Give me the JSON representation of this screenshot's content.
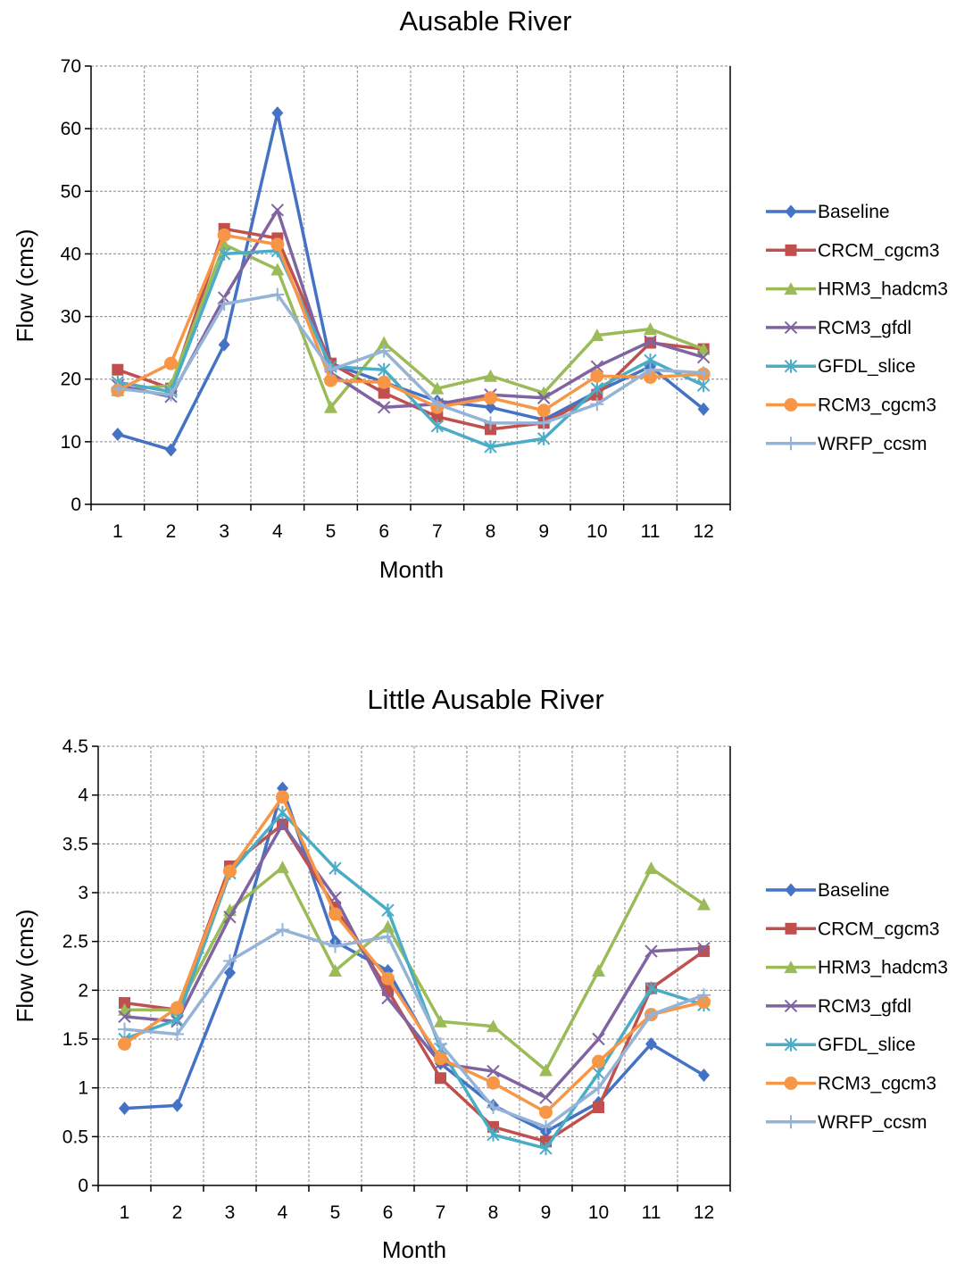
{
  "chart_data": [
    {
      "type": "line",
      "title": "Ausable River",
      "xlabel": "Month",
      "ylabel": "Flow (cms)",
      "ylim": [
        0,
        70
      ],
      "ytick_step": 10,
      "yticks": [
        "0",
        "10",
        "20",
        "30",
        "40",
        "50",
        "60",
        "70"
      ],
      "categories": [
        "1",
        "2",
        "3",
        "4",
        "5",
        "6",
        "7",
        "8",
        "9",
        "10",
        "11",
        "12"
      ],
      "grid": true,
      "legend_position": "right",
      "series": [
        {
          "name": "Baseline",
          "color": "#4472C4",
          "marker": "diamond",
          "values": [
            11.2,
            8.7,
            25.5,
            62.5,
            22.5,
            19.5,
            16.5,
            15.5,
            13.5,
            18.0,
            22.0,
            15.2
          ]
        },
        {
          "name": "CRCM_cgcm3",
          "color": "#C0504D",
          "marker": "square",
          "values": [
            21.5,
            18.5,
            44.0,
            42.5,
            22.5,
            17.8,
            14.0,
            12.0,
            13.0,
            17.5,
            25.8,
            24.8
          ]
        },
        {
          "name": "HRM3_hadcm3",
          "color": "#9BBB59",
          "marker": "triangle",
          "values": [
            18.2,
            19.0,
            41.5,
            37.5,
            15.5,
            25.8,
            18.5,
            20.5,
            17.8,
            27.0,
            28.0,
            24.8
          ]
        },
        {
          "name": "RCM3_gfdl",
          "color": "#8064A2",
          "marker": "x",
          "values": [
            19.0,
            17.2,
            33.0,
            47.0,
            21.0,
            15.5,
            16.0,
            17.5,
            17.0,
            22.0,
            26.0,
            23.5
          ]
        },
        {
          "name": "GFDL_slice",
          "color": "#4BACC6",
          "marker": "asterisk",
          "values": [
            19.5,
            18.0,
            40.0,
            40.5,
            22.0,
            21.5,
            12.5,
            9.2,
            10.5,
            18.5,
            23.0,
            19.0
          ]
        },
        {
          "name": "RCM3_cgcm3",
          "color": "#F79646",
          "marker": "circle",
          "values": [
            18.2,
            22.5,
            43.0,
            41.5,
            19.8,
            19.5,
            15.5,
            17.0,
            15.0,
            20.5,
            20.3,
            20.8
          ]
        },
        {
          "name": "WRFP_ccsm",
          "color": "#95B3D7",
          "marker": "plus",
          "values": [
            18.5,
            17.5,
            32.0,
            33.5,
            21.5,
            24.5,
            16.0,
            13.0,
            13.0,
            16.0,
            21.5,
            21.0
          ]
        }
      ]
    },
    {
      "type": "line",
      "title": "Little Ausable River",
      "xlabel": "Month",
      "ylabel": "Flow (cms)",
      "ylim": [
        0,
        4.5
      ],
      "ytick_step": 0.5,
      "yticks": [
        "0",
        "0.5",
        "1",
        "1.5",
        "2",
        "2.5",
        "3",
        "3.5",
        "4",
        "4.5"
      ],
      "categories": [
        "1",
        "2",
        "3",
        "4",
        "5",
        "6",
        "7",
        "8",
        "9",
        "10",
        "11",
        "12"
      ],
      "grid": true,
      "legend_position": "right",
      "series": [
        {
          "name": "Baseline",
          "color": "#4472C4",
          "marker": "diamond",
          "values": [
            0.79,
            0.82,
            2.18,
            4.07,
            2.5,
            2.2,
            1.25,
            0.82,
            0.55,
            0.85,
            1.45,
            1.13
          ]
        },
        {
          "name": "CRCM_cgcm3",
          "color": "#C0504D",
          "marker": "square",
          "values": [
            1.87,
            1.8,
            3.27,
            3.7,
            2.85,
            2.0,
            1.1,
            0.6,
            0.45,
            0.8,
            2.02,
            2.4
          ]
        },
        {
          "name": "HRM3_hadcm3",
          "color": "#9BBB59",
          "marker": "triangle",
          "values": [
            1.8,
            1.8,
            2.82,
            3.26,
            2.2,
            2.65,
            1.68,
            1.63,
            1.18,
            2.2,
            3.25,
            2.88
          ]
        },
        {
          "name": "RCM3_gfdl",
          "color": "#8064A2",
          "marker": "x",
          "values": [
            1.73,
            1.68,
            2.75,
            3.7,
            2.95,
            1.92,
            1.25,
            1.17,
            0.9,
            1.5,
            2.4,
            2.43
          ]
        },
        {
          "name": "GFDL_slice",
          "color": "#4BACC6",
          "marker": "asterisk",
          "values": [
            1.5,
            1.7,
            3.2,
            3.82,
            3.25,
            2.82,
            1.4,
            0.52,
            0.38,
            1.15,
            2.02,
            1.85
          ]
        },
        {
          "name": "RCM3_cgcm3",
          "color": "#F79646",
          "marker": "circle",
          "values": [
            1.45,
            1.82,
            3.22,
            3.98,
            2.78,
            2.12,
            1.3,
            1.05,
            0.75,
            1.27,
            1.75,
            1.88
          ]
        },
        {
          "name": "WRFP_ccsm",
          "color": "#95B3D7",
          "marker": "plus",
          "values": [
            1.6,
            1.55,
            2.3,
            2.62,
            2.45,
            2.55,
            1.45,
            0.8,
            0.6,
            1.0,
            1.75,
            1.95
          ]
        }
      ]
    }
  ]
}
